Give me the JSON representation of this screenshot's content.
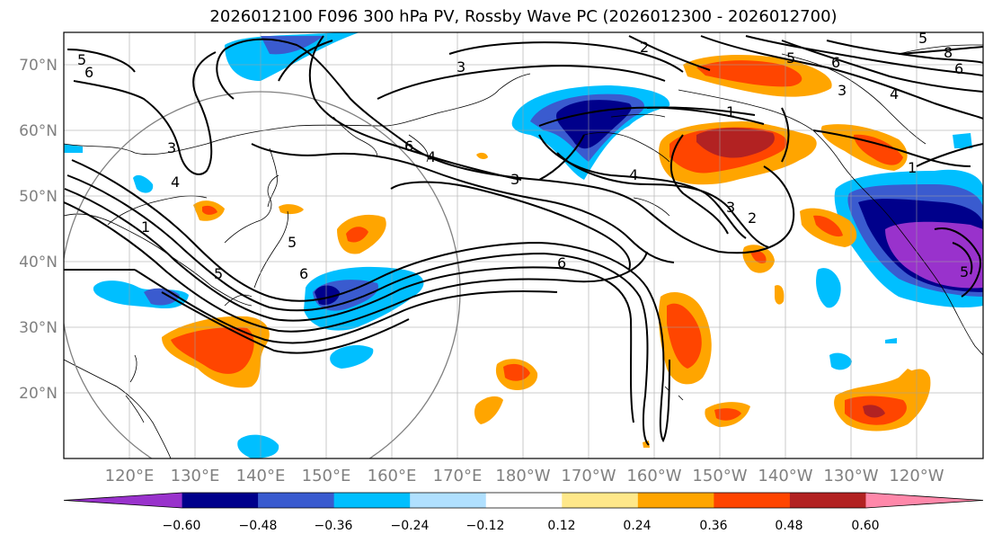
{
  "title": "2026012100 F096 300 hPa PV, Rossby Wave PC (2026012300 - 2026012700)",
  "lat_labels": [
    "70°N",
    "60°N",
    "50°N",
    "40°N",
    "30°N",
    "20°N"
  ],
  "lon_labels": [
    "120°E",
    "130°E",
    "140°E",
    "150°E",
    "160°E",
    "170°E",
    "180°W",
    "170°W",
    "160°W",
    "150°W",
    "140°W",
    "130°W",
    "120°W"
  ],
  "colorbar": {
    "ticks": [
      "−0.60",
      "−0.48",
      "−0.36",
      "−0.24",
      "−0.12",
      "0.12",
      "0.24",
      "0.36",
      "0.48",
      "0.60"
    ],
    "colors": [
      "#9932cc",
      "#00008b",
      "#3a5bcf",
      "#00bfff",
      "#b0e0ff",
      "#ffffff",
      "#ffe88a",
      "#ffa500",
      "#ff4500",
      "#b22222",
      "#ff88aa"
    ]
  },
  "contour_labels": {
    "c1": "5",
    "c2": "6",
    "c3": "3",
    "c4": "4",
    "c5": "1",
    "c6": "5",
    "c7": "5",
    "c8": "6",
    "c9": "6",
    "c10": "4",
    "c11": "3",
    "c12": "3",
    "c13": "2",
    "c14": "1",
    "c15": "4",
    "c16": "3",
    "c17": "2",
    "c18": "5",
    "c19": "6",
    "c20": "3",
    "c21": "4",
    "c22": "8",
    "c23": "6",
    "c24": "5",
    "c25": "6",
    "c26": "1",
    "c27": "5"
  }
}
